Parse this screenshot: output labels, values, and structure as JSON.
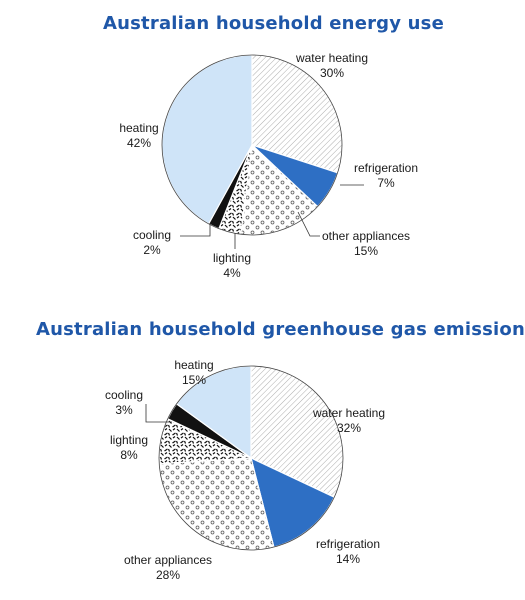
{
  "chart_data": [
    {
      "type": "pie",
      "title": "Australian household energy use",
      "slices": [
        {
          "label": "water heating",
          "value": 30,
          "value_label": "30%",
          "fill": "diag"
        },
        {
          "label": "refrigeration",
          "value": 7,
          "value_label": "7%",
          "fill": "blue"
        },
        {
          "label": "other appliances",
          "value": 15,
          "value_label": "15%",
          "fill": "circles"
        },
        {
          "label": "lighting",
          "value": 4,
          "value_label": "4%",
          "fill": "dashes"
        },
        {
          "label": "cooling",
          "value": 2,
          "value_label": "2%",
          "fill": "black"
        },
        {
          "label": "heating",
          "value": 42,
          "value_label": "42%",
          "fill": "lightblue"
        }
      ]
    },
    {
      "type": "pie",
      "title": "Australian household greenhouse gas emissions",
      "slices": [
        {
          "label": "water heating",
          "value": 32,
          "value_label": "32%",
          "fill": "diag"
        },
        {
          "label": "refrigeration",
          "value": 14,
          "value_label": "14%",
          "fill": "blue"
        },
        {
          "label": "other appliances",
          "value": 28,
          "value_label": "28%",
          "fill": "circles"
        },
        {
          "label": "lighting",
          "value": 8,
          "value_label": "8%",
          "fill": "dashes"
        },
        {
          "label": "cooling",
          "value": 3,
          "value_label": "3%",
          "fill": "black"
        },
        {
          "label": "heating",
          "value": 15,
          "value_label": "15%",
          "fill": "lightblue"
        }
      ]
    }
  ],
  "colors": {
    "title": "#1f57a8",
    "blue": "#2e6fc4",
    "lightblue": "#cfe4f8",
    "black": "#111111",
    "outline": "#444444"
  }
}
